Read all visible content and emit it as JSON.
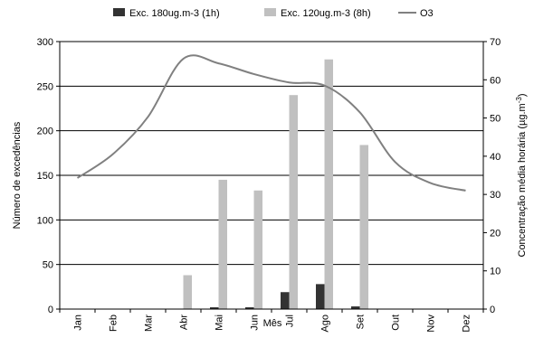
{
  "chart_data": {
    "type": "bar",
    "categories": [
      "Jan",
      "Feb",
      "Mar",
      "Abr",
      "Mai",
      "Jun",
      "Jul",
      "Ago",
      "Set",
      "Out",
      "Nov",
      "Dez"
    ],
    "xlabel": "Mês",
    "ylabel": "Número de excedências",
    "ylabel2_main": "Concentração média horária (µg.m",
    "ylabel2_sup": "-3",
    "ylabel2_close": ")",
    "ylim": [
      0,
      300
    ],
    "y_ticks": [
      "0",
      "50",
      "100",
      "150",
      "200",
      "250",
      "300"
    ],
    "y2lim": [
      0,
      70
    ],
    "y2_ticks": [
      "0",
      "10",
      "20",
      "30",
      "40",
      "50",
      "60",
      "70"
    ],
    "grid": true,
    "legend_position": "top",
    "series": [
      {
        "name": "Exc. 180ug.m-3 (1h)",
        "type": "bar",
        "axis": "left",
        "color": "#333333",
        "values": [
          0,
          0,
          0,
          0,
          2,
          2,
          19,
          28,
          3,
          0,
          0,
          0
        ]
      },
      {
        "name": "Exc. 120ug.m-3 (8h)",
        "type": "bar",
        "axis": "left",
        "color": "#c0c0c0",
        "values": [
          0,
          0,
          0,
          38,
          145,
          133,
          240,
          280,
          184,
          0,
          0,
          0
        ]
      },
      {
        "name": "O3",
        "type": "line",
        "axis": "right",
        "color": "#808080",
        "values": [
          34.3,
          40.5,
          50.3,
          65.5,
          64.3,
          61.5,
          59.3,
          58.5,
          51.5,
          38.5,
          33.0,
          31.0
        ]
      }
    ]
  }
}
